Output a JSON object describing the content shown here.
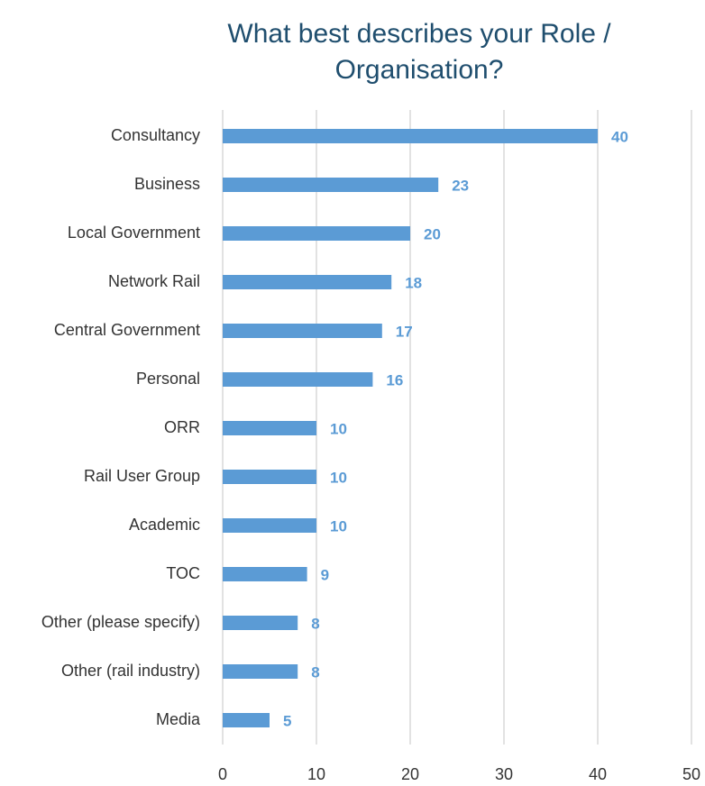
{
  "chart_data": {
    "type": "bar",
    "orientation": "horizontal",
    "title": "What best describes your Role / Organisation?",
    "categories": [
      "Consultancy",
      "Business",
      "Local Government",
      "Network Rail",
      "Central Government",
      "Personal",
      "ORR",
      "Rail User Group",
      "Academic",
      "TOC",
      "Other (please specify)",
      "Other (rail industry)",
      "Media"
    ],
    "values": [
      40,
      23,
      20,
      18,
      17,
      16,
      10,
      10,
      10,
      9,
      8,
      8,
      5
    ],
    "color": "#5b9bd5",
    "xlim": [
      0,
      50
    ],
    "xticks": [
      0,
      10,
      20,
      30,
      40,
      50
    ],
    "grid": true,
    "data_labels": true
  }
}
